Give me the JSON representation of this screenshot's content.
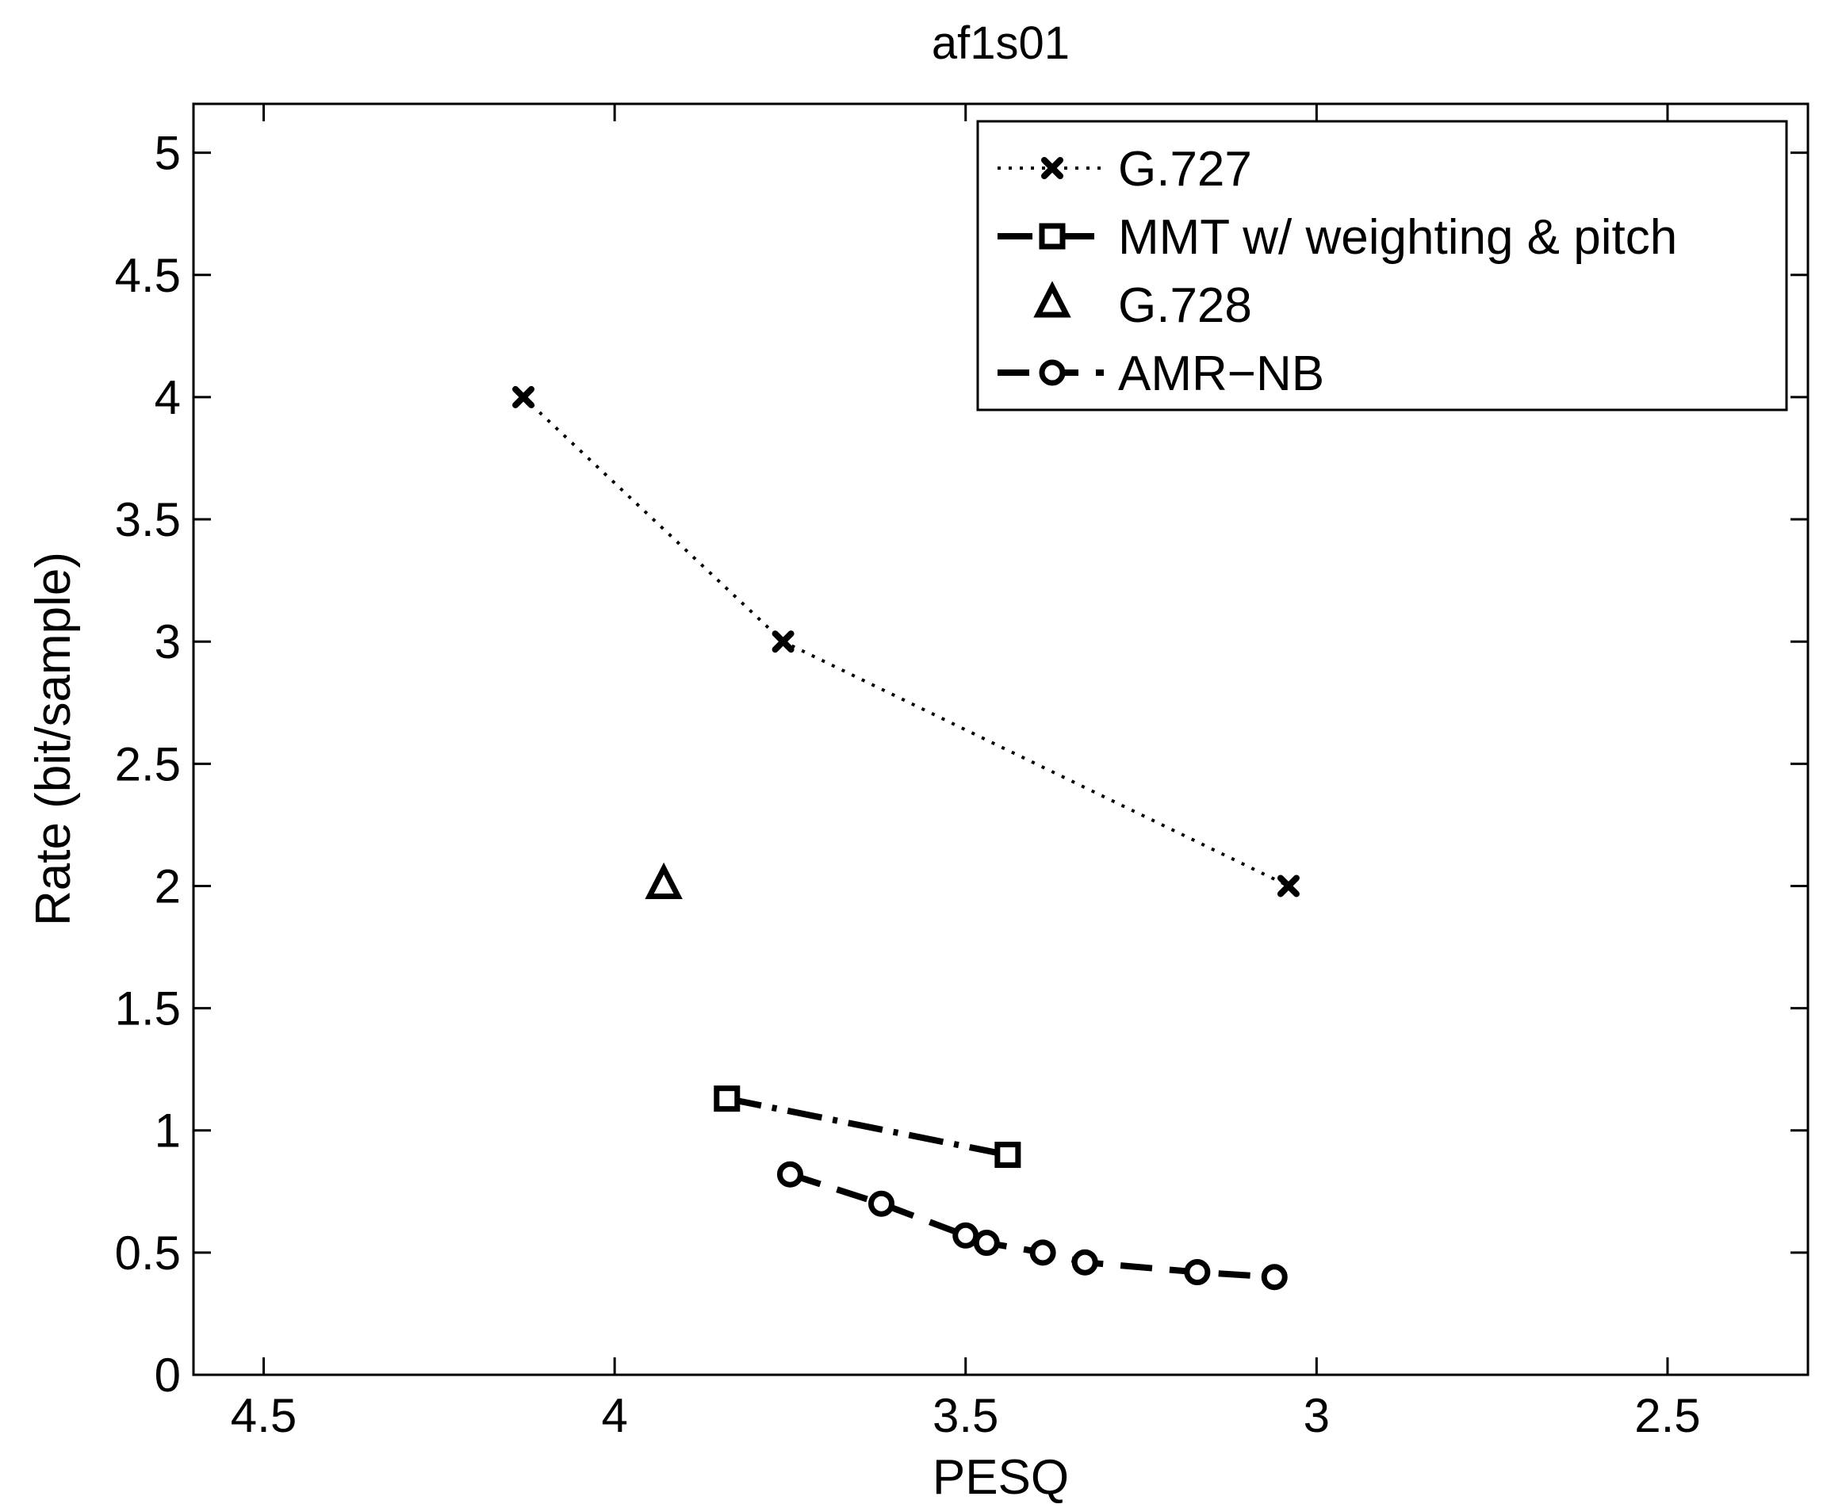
{
  "chart_data": {
    "type": "line",
    "title": "af1s01",
    "xlabel": "PESQ",
    "ylabel": "Rate (bit/sample)",
    "xlim": [
      4.6,
      2.3
    ],
    "ylim": [
      0,
      5.2
    ],
    "x_reversed": true,
    "x_ticks": [
      4.5,
      4,
      3.5,
      3,
      2.5
    ],
    "x_tick_labels": [
      "4.5",
      "4",
      "3.5",
      "3",
      "2.5"
    ],
    "y_ticks": [
      0,
      0.5,
      1,
      1.5,
      2,
      2.5,
      3,
      3.5,
      4,
      4.5,
      5
    ],
    "y_tick_labels": [
      "0",
      "0.5",
      "1",
      "1.5",
      "2",
      "2.5",
      "3",
      "3.5",
      "4",
      "4.5",
      "5"
    ],
    "grid": false,
    "legend_position": "top-right",
    "series": [
      {
        "name": "G.727",
        "line_style": "dotted",
        "marker": "x",
        "x": [
          4.13,
          3.76,
          3.04
        ],
        "y": [
          4.0,
          3.0,
          2.0
        ]
      },
      {
        "name": "MMT w/ weighting & pitch",
        "line_style": "dashdot",
        "marker": "square",
        "x": [
          3.84,
          3.44
        ],
        "y": [
          1.13,
          0.9
        ]
      },
      {
        "name": "G.728",
        "line_style": "none",
        "marker": "triangle",
        "x": [
          3.93
        ],
        "y": [
          2.0
        ]
      },
      {
        "name": "AMR−NB",
        "line_style": "dashed",
        "marker": "circle",
        "x": [
          3.75,
          3.62,
          3.5,
          3.47,
          3.39,
          3.33,
          3.17,
          3.06
        ],
        "y": [
          0.82,
          0.7,
          0.57,
          0.54,
          0.5,
          0.46,
          0.42,
          0.4
        ]
      }
    ],
    "colors": {
      "line": "#000000",
      "background": "#ffffff"
    }
  }
}
